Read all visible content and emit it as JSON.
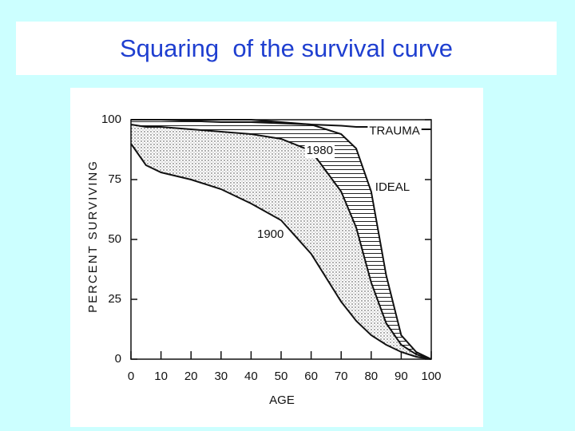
{
  "chart_data": {
    "type": "line",
    "title": "Squaring  of the survival curve",
    "xlabel": "AGE",
    "ylabel": "PERCENT SURVIVING",
    "x": [
      0,
      5,
      10,
      20,
      30,
      40,
      50,
      60,
      70,
      75,
      80,
      85,
      90,
      95,
      100
    ],
    "series": [
      {
        "name": "1900",
        "color": "#111111",
        "values": [
          90,
          81,
          78,
          75,
          71,
          65,
          58,
          44,
          24,
          16,
          10,
          6,
          3,
          1,
          0
        ]
      },
      {
        "name": "1980",
        "color": "#111111",
        "values": [
          98,
          97,
          97,
          96,
          95,
          94,
          92,
          87,
          70,
          55,
          32,
          15,
          6,
          2,
          0
        ]
      },
      {
        "name": "IDEAL",
        "color": "#111111",
        "values": [
          100,
          100,
          100,
          100,
          100,
          100,
          99,
          98,
          94,
          88,
          70,
          35,
          10,
          3,
          0
        ]
      },
      {
        "name": "TRAUMA",
        "color": "#111111",
        "values": [
          100,
          100,
          100,
          99.5,
          99,
          99,
          98.5,
          98,
          97.5,
          97,
          97,
          96.5,
          96.5,
          96,
          96
        ]
      }
    ],
    "xlim": [
      0,
      100
    ],
    "xticks": [
      0,
      10,
      20,
      30,
      40,
      50,
      60,
      70,
      80,
      90,
      100
    ],
    "ylim": [
      0,
      100
    ],
    "yticks": [
      0,
      25,
      50,
      75,
      100
    ],
    "grid": false
  }
}
